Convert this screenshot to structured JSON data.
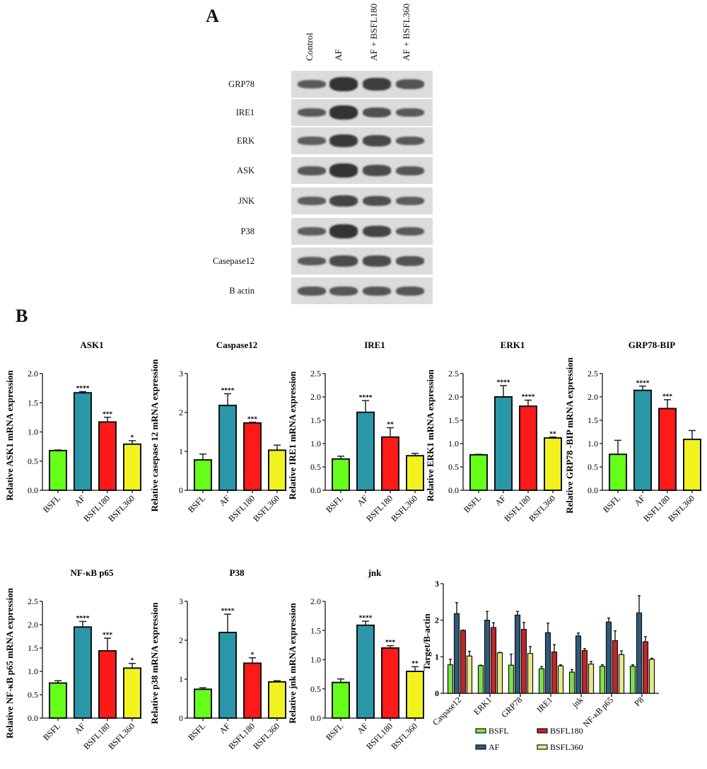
{
  "panels": {
    "a_label": "A",
    "b_label": "B"
  },
  "western_blot": {
    "lanes": [
      "Control",
      "AF",
      "AF + BSFL180",
      "AF + BSFL360"
    ],
    "proteins": [
      {
        "name": "GRP78",
        "intensity": [
          0.45,
          1.0,
          0.85,
          0.55
        ]
      },
      {
        "name": "IRE1",
        "intensity": [
          0.45,
          1.0,
          0.6,
          0.45
        ]
      },
      {
        "name": "ERK",
        "intensity": [
          0.4,
          0.9,
          0.7,
          0.45
        ]
      },
      {
        "name": "ASK",
        "intensity": [
          0.5,
          1.0,
          0.65,
          0.5
        ]
      },
      {
        "name": "JNK",
        "intensity": [
          0.4,
          0.75,
          0.6,
          0.4
        ]
      },
      {
        "name": "P38",
        "intensity": [
          0.4,
          1.0,
          0.75,
          0.45
        ]
      },
      {
        "name": "Casepase12",
        "intensity": [
          0.45,
          0.65,
          0.65,
          0.55
        ]
      },
      {
        "name": "B actin",
        "intensity": [
          0.5,
          0.5,
          0.5,
          0.5
        ]
      }
    ]
  },
  "colors": {
    "BSFL": "#66ff1a",
    "AF": "#2a97a8",
    "BSFL180": "#ff1a1a",
    "BSFL360": "#f2f21f",
    "AF_grouped": "#2e5b78",
    "BSFL180_grouped": "#c0262a",
    "BSFL360_grouped": "#e8e88a",
    "BSFL_grouped": "#7be04a"
  },
  "chart_data": [
    {
      "type": "bar",
      "title": "ASK1",
      "ylabel": "Relative ASK1 mRNA expression",
      "xlabel": "",
      "categories": [
        "BSFL",
        "AF",
        "BSFL180",
        "BSFL360"
      ],
      "values": [
        0.68,
        1.67,
        1.17,
        0.79
      ],
      "errors": [
        0.01,
        0.02,
        0.08,
        0.06
      ],
      "significance": [
        "",
        "****",
        "***",
        "*"
      ],
      "ylim": [
        0,
        2.0
      ],
      "yticks": [
        "0.0",
        "0.5",
        "1.0",
        "1.5",
        "2.0"
      ],
      "grid": false
    },
    {
      "type": "bar",
      "title": "Caspase12",
      "ylabel": "Relative casepase 12 mRNA expression",
      "xlabel": "",
      "categories": [
        "BSFL",
        "AF",
        "BSFL180",
        "BSFL360"
      ],
      "values": [
        0.78,
        2.18,
        1.73,
        1.03
      ],
      "errors": [
        0.15,
        0.3,
        0.02,
        0.13
      ],
      "significance": [
        "",
        "****",
        "***",
        ""
      ],
      "ylim": [
        0,
        3
      ],
      "yticks": [
        "0",
        "1",
        "2",
        "3"
      ],
      "grid": false
    },
    {
      "type": "bar",
      "title": "IRE1",
      "ylabel": "Relative IRE1 mRNA expression",
      "xlabel": "",
      "categories": [
        "BSFL",
        "AF",
        "BSFL180",
        "BSFL360"
      ],
      "values": [
        0.67,
        1.67,
        1.14,
        0.74
      ],
      "errors": [
        0.06,
        0.25,
        0.2,
        0.05
      ],
      "significance": [
        "",
        "****",
        "**",
        ""
      ],
      "ylim": [
        0,
        2.5
      ],
      "yticks": [
        "0.0",
        "0.5",
        "1.0",
        "1.5",
        "2.0",
        "2.5"
      ],
      "grid": false
    },
    {
      "type": "bar",
      "title": "ERK1",
      "ylabel": "Relative ERK1 mRNA expression",
      "xlabel": "",
      "categories": [
        "BSFL",
        "AF",
        "BSFL180",
        "BSFL360"
      ],
      "values": [
        0.76,
        2.0,
        1.8,
        1.12
      ],
      "errors": [
        0.01,
        0.24,
        0.13,
        0.02
      ],
      "significance": [
        "",
        "****",
        "****",
        "**"
      ],
      "ylim": [
        0,
        2.5
      ],
      "yticks": [
        "0.0",
        "0.5",
        "1.0",
        "1.5",
        "2.0",
        "2.5"
      ],
      "grid": false
    },
    {
      "type": "bar",
      "title": "GRP78-BIP",
      "ylabel": "Relative GRP78 -BIP mRNA expression",
      "xlabel": "",
      "categories": [
        "BSFL",
        "AF",
        "BSFL180",
        "BSFL360"
      ],
      "values": [
        0.77,
        2.14,
        1.75,
        1.09
      ],
      "errors": [
        0.3,
        0.09,
        0.19,
        0.19
      ],
      "significance": [
        "",
        "****",
        "***",
        ""
      ],
      "ylim": [
        0,
        2.5
      ],
      "yticks": [
        "0.0",
        "0.5",
        "1.0",
        "1.5",
        "2.0",
        "2.5"
      ],
      "grid": false
    },
    {
      "type": "bar",
      "title": "NF-κB p65",
      "ylabel": "Relative NF-κB p65 mRNA expression",
      "xlabel": "",
      "categories": [
        "BSFL",
        "AF",
        "BSFL180",
        "BSFL360"
      ],
      "values": [
        0.75,
        1.95,
        1.44,
        1.07
      ],
      "errors": [
        0.05,
        0.12,
        0.27,
        0.1
      ],
      "significance": [
        "",
        "****",
        "***",
        "*"
      ],
      "ylim": [
        0,
        2.5
      ],
      "yticks": [
        "0.0",
        "0.5",
        "1.0",
        "1.5",
        "2.0",
        "2.5"
      ],
      "grid": false
    },
    {
      "type": "bar",
      "title": "P38",
      "ylabel": "Relative p38 mRNA expression",
      "xlabel": "",
      "categories": [
        "BSFL",
        "AF",
        "BSFL180",
        "BSFL360"
      ],
      "values": [
        0.74,
        2.2,
        1.41,
        0.93
      ],
      "errors": [
        0.04,
        0.47,
        0.14,
        0.03
      ],
      "significance": [
        "",
        "****",
        "*",
        ""
      ],
      "ylim": [
        0,
        3
      ],
      "yticks": [
        "0",
        "1",
        "2",
        "3"
      ],
      "grid": false
    },
    {
      "type": "bar",
      "title": "jnk",
      "ylabel": "Relative jnk mRNA expression",
      "xlabel": "",
      "categories": [
        "BSFL",
        "AF",
        "BSFL180",
        "BSFL360"
      ],
      "values": [
        0.61,
        1.59,
        1.2,
        0.8
      ],
      "errors": [
        0.06,
        0.07,
        0.04,
        0.08
      ],
      "significance": [
        "",
        "****",
        "***",
        "**"
      ],
      "ylim": [
        0,
        2.0
      ],
      "yticks": [
        "0.0",
        "0.5",
        "1.0",
        "1.5",
        "2.0"
      ],
      "grid": false
    },
    {
      "type": "bar",
      "title": "",
      "ylabel": "Target/B-actin",
      "xlabel": "",
      "categories": [
        "Caspase12",
        "ERK1",
        "GRP78",
        "IRE1",
        "jnk",
        "NF-κB p65",
        "P8"
      ],
      "series": [
        {
          "name": "BSFL",
          "values": [
            0.78,
            0.76,
            0.77,
            0.67,
            0.58,
            0.74,
            0.74
          ],
          "errors": [
            0.15,
            0.01,
            0.3,
            0.06,
            0.07,
            0.04,
            0.04
          ]
        },
        {
          "name": "AF",
          "values": [
            2.18,
            2.0,
            2.14,
            1.66,
            1.57,
            1.95,
            2.2
          ],
          "errors": [
            0.3,
            0.24,
            0.1,
            0.26,
            0.08,
            0.11,
            0.47
          ]
        },
        {
          "name": "BSFL180",
          "values": [
            1.72,
            1.8,
            1.75,
            1.13,
            1.17,
            1.44,
            1.41
          ],
          "errors": [
            0.01,
            0.13,
            0.19,
            0.2,
            0.05,
            0.27,
            0.14
          ]
        },
        {
          "name": "BSFL360",
          "values": [
            1.02,
            1.11,
            1.09,
            0.75,
            0.8,
            1.06,
            0.93
          ],
          "errors": [
            0.13,
            0.01,
            0.19,
            0.03,
            0.07,
            0.1,
            0.03
          ]
        }
      ],
      "legend": [
        "BSFL",
        "AF",
        "BSFL180",
        "BSFL360"
      ],
      "legend_position": "bottom",
      "ylim": [
        0,
        3
      ],
      "yticks": [
        "0",
        "1",
        "2",
        "3"
      ],
      "grid": false
    }
  ]
}
